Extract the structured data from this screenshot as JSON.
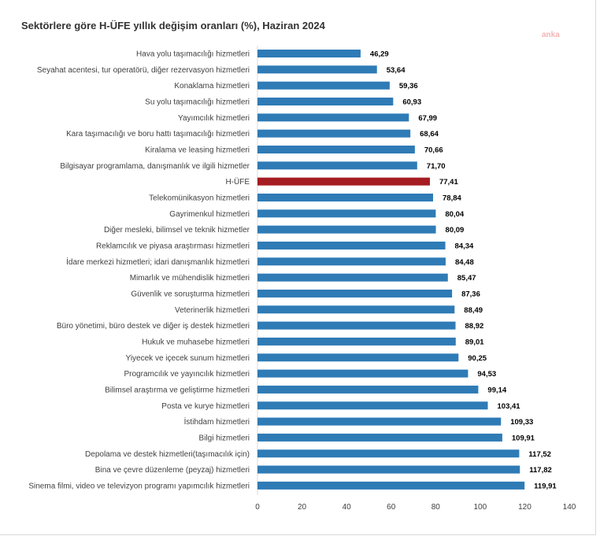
{
  "chart_data": {
    "type": "bar",
    "orientation": "horizontal",
    "title": "Sektörlere göre H-ÜFE yıllık değişim oranları (%), Haziran 2024",
    "watermark": "anka",
    "xlim": [
      0,
      140
    ],
    "xticks": [
      "0",
      "20",
      "40",
      "60",
      "80",
      "100",
      "120",
      "140"
    ],
    "grid": false,
    "colors": {
      "default": "#2e7bb6",
      "highlight": "#a51c22"
    },
    "highlight": "H-ÜFE",
    "categories": [
      "Hava yolu taşımacılığı hizmetleri",
      "Seyahat acentesi, tur operatörü, diğer rezervasyon hizmetleri",
      "Konaklama hizmetleri",
      "Su yolu taşımacılığı hizmetleri",
      "Yayımcılık hizmetleri",
      "Kara taşımacılığı ve boru hattı taşımacılığı hizmetleri",
      "Kiralama ve leasing hizmetleri",
      "Bilgisayar programlama, danışmanlık ve ilgili hizmetler",
      "H-ÜFE",
      "Telekomünikasyon hizmetleri",
      "Gayrimenkul hizmetleri",
      "Diğer mesleki, bilimsel ve teknik hizmetler",
      "Reklamcılık ve piyasa araştırması hizmetleri",
      "İdare merkezi hizmetleri; idari danışmanlık hizmetleri",
      "Mimarlık ve mühendislik hizmetleri",
      "Güvenlik ve soruşturma hizmetleri",
      "Veterinerlik hizmetleri",
      "Büro yönetimi, büro destek ve diğer iş destek hizmetleri",
      "Hukuk ve muhasebe hizmetleri",
      "Yiyecek ve içecek sunum hizmetleri",
      "Programcılık ve yayıncılık hizmetleri",
      "Bilimsel araştırma ve geliştirme hizmetleri",
      "Posta ve kurye hizmetleri",
      "İstihdam hizmetleri",
      "Bilgi hizmetleri",
      "Depolama ve destek hizmetleri(taşımacılık için)",
      "Bina ve çevre düzenleme (peyzaj) hizmetleri",
      "Sinema filmi, video ve televizyon programı yapımcılık hizmetleri"
    ],
    "values": [
      46.29,
      53.64,
      59.36,
      60.93,
      67.99,
      68.64,
      70.66,
      71.7,
      77.41,
      78.84,
      80.04,
      80.09,
      84.34,
      84.48,
      85.47,
      87.36,
      88.49,
      88.92,
      89.01,
      90.25,
      94.53,
      99.14,
      103.41,
      109.33,
      109.91,
      117.52,
      117.82,
      119.91
    ],
    "value_labels": [
      "46,29",
      "53,64",
      "59,36",
      "60,93",
      "67,99",
      "68,64",
      "70,66",
      "71,70",
      "77,41",
      "78,84",
      "80,04",
      "80,09",
      "84,34",
      "84,48",
      "85,47",
      "87,36",
      "88,49",
      "88,92",
      "89,01",
      "90,25",
      "94,53",
      "99,14",
      "103,41",
      "109,33",
      "109,91",
      "117,52",
      "117,82",
      "119,91"
    ]
  }
}
